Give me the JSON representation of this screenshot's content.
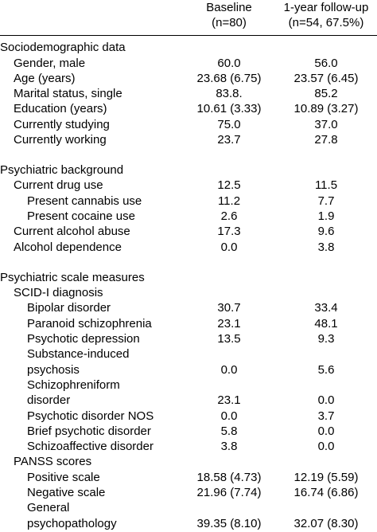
{
  "header": {
    "baseline_line1": "Baseline",
    "baseline_line2": "(n=80)",
    "followup_line1": "1-year follow-up",
    "followup_line2": "(n=54, 67.5%)"
  },
  "rows": [
    {
      "label": "Sociodemographic data",
      "indent": 0,
      "baseline": "",
      "followup": ""
    },
    {
      "label": "Gender, male",
      "indent": 1,
      "baseline": "60.0",
      "followup": "56.0"
    },
    {
      "label": "Age (years)",
      "indent": 1,
      "baseline": "23.68 (6.75)",
      "followup": "23.57 (6.45)"
    },
    {
      "label": "Marital status, single",
      "indent": 1,
      "baseline": "83.8.",
      "followup": "85.2"
    },
    {
      "label": "Education (years)",
      "indent": 1,
      "baseline": "10.61 (3.33)",
      "followup": "10.89 (3.27)"
    },
    {
      "label": "Currently studying",
      "indent": 1,
      "baseline": "75.0",
      "followup": "37.0"
    },
    {
      "label": "Currently working",
      "indent": 1,
      "baseline": "23.7",
      "followup": "27.8"
    },
    {
      "label": "Psychiatric background",
      "indent": 0,
      "baseline": "",
      "followup": ""
    },
    {
      "label": "Current drug use",
      "indent": 1,
      "baseline": "12.5",
      "followup": "11.5"
    },
    {
      "label": "Present cannabis use",
      "indent": 2,
      "baseline": "11.2",
      "followup": "7.7"
    },
    {
      "label": "Present cocaine use",
      "indent": 2,
      "baseline": "2.6",
      "followup": "1.9"
    },
    {
      "label": "Current alcohol abuse",
      "indent": 1,
      "baseline": "17.3",
      "followup": "9.6"
    },
    {
      "label": "Alcohol dependence",
      "indent": 1,
      "baseline": "0.0",
      "followup": "3.8"
    },
    {
      "label": "Psychiatric scale measures",
      "indent": 0,
      "baseline": "",
      "followup": ""
    },
    {
      "label": "SCID-I diagnosis",
      "indent": 1,
      "baseline": "",
      "followup": ""
    },
    {
      "label": "Bipolar disorder",
      "indent": 2,
      "baseline": "30.7",
      "followup": "33.4"
    },
    {
      "label": "Paranoid schizophrenia",
      "indent": 2,
      "baseline": "23.1",
      "followup": "48.1"
    },
    {
      "label": "Psychotic depression",
      "indent": 2,
      "baseline": "13.5",
      "followup": "9.3"
    },
    {
      "label": "Substance-induced",
      "indent": 2,
      "baseline": "",
      "followup": ""
    },
    {
      "label": "psychosis",
      "indent": 2,
      "baseline": "0.0",
      "followup": "5.6"
    },
    {
      "label": "Schizophreniform",
      "indent": 2,
      "baseline": "",
      "followup": ""
    },
    {
      "label": "disorder",
      "indent": 2,
      "baseline": "23.1",
      "followup": "0.0"
    },
    {
      "label": "Psychotic disorder NOS",
      "indent": 2,
      "baseline": "0.0",
      "followup": "3.7"
    },
    {
      "label": "Brief psychotic disorder",
      "indent": 2,
      "baseline": "5.8",
      "followup": "0.0"
    },
    {
      "label": "Schizoaffective disorder",
      "indent": 2,
      "baseline": "3.8",
      "followup": "0.0"
    },
    {
      "label": "PANSS scores",
      "indent": 1,
      "baseline": "",
      "followup": ""
    },
    {
      "label": "Positive scale",
      "indent": 2,
      "baseline": "18.58 (4.73)",
      "followup": "12.19 (5.59)"
    },
    {
      "label": "Negative scale",
      "indent": 2,
      "baseline": "21.96 (7.74)",
      "followup": "16.74 (6.86)"
    },
    {
      "label": "General",
      "indent": 2,
      "baseline": "",
      "followup": ""
    },
    {
      "label": "psychopathology",
      "indent": 2,
      "baseline": "39.35 (8.10)",
      "followup": "32.07 (8.30)"
    }
  ]
}
